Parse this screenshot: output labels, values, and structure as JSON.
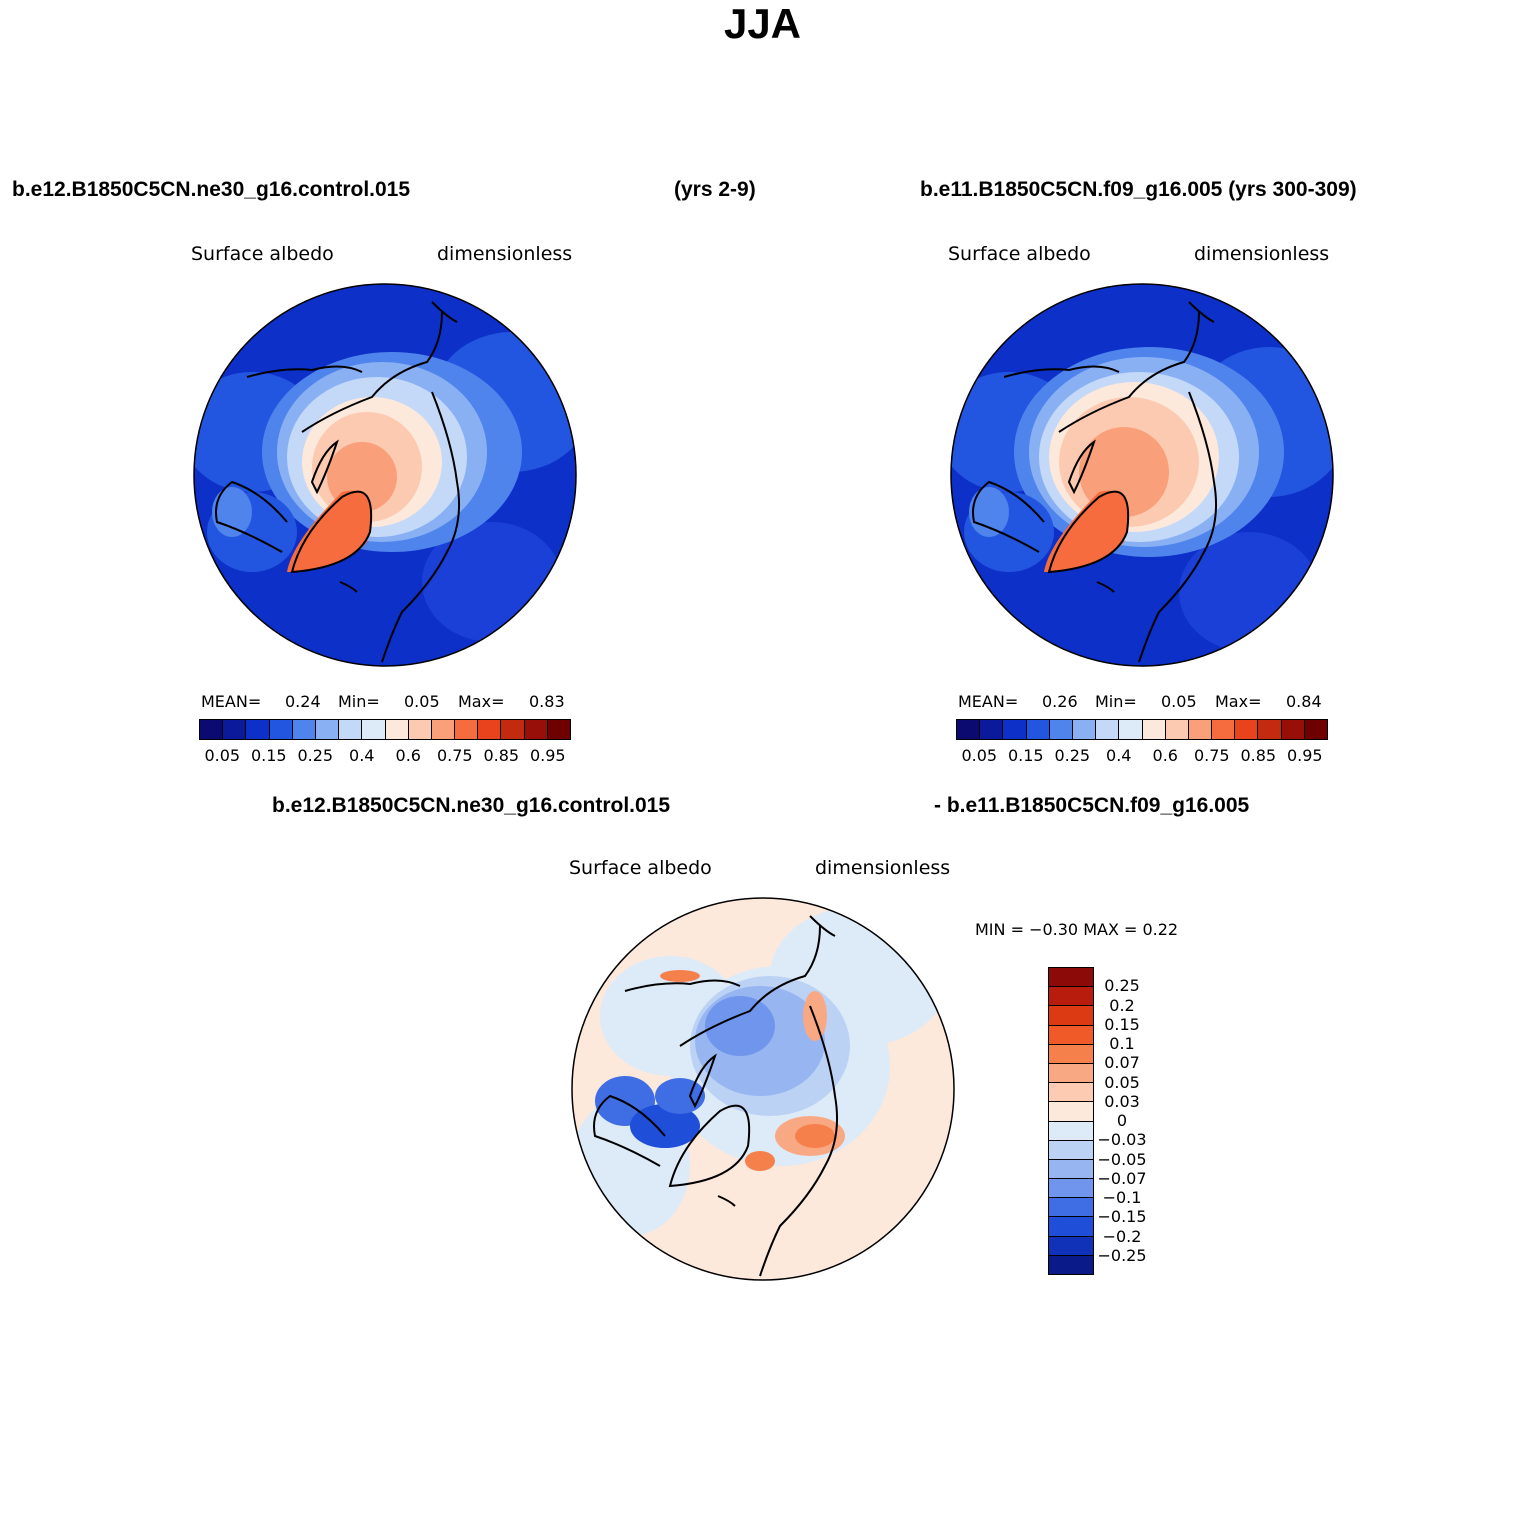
{
  "title": "JJA",
  "panel_left": {
    "case": "b.e12.B1850C5CN.ne30_g16.control.015",
    "years": "(yrs 2-9)",
    "variable": "Surface albedo",
    "units": "dimensionless",
    "mean_label": "MEAN=",
    "mean": "0.24",
    "min_label": "Min=",
    "min": "0.05",
    "max_label": "Max=",
    "max": "0.83"
  },
  "panel_right": {
    "case": "b.e11.B1850C5CN.f09_g16.005 (yrs 300-309)",
    "variable": "Surface albedo",
    "units": "dimensionless",
    "mean_label": "MEAN=",
    "mean": "0.26",
    "min_label": "Min=",
    "min": "0.05",
    "max_label": "Max=",
    "max": "0.84"
  },
  "panel_diff": {
    "case_a": "b.e12.B1850C5CN.ne30_g16.control.015",
    "case_b": "- b.e11.B1850C5CN.f09_g16.005",
    "variable": "Surface albedo",
    "units": "dimensionless",
    "minmax_label": "MIN =   −0.30 MAX =    0.22"
  },
  "colorbar_abs": {
    "colors": [
      "#0a0a70",
      "#0a1a9a",
      "#0d30c8",
      "#2356e0",
      "#4f84ec",
      "#8ab0f4",
      "#c4d8f8",
      "#ddeaf8",
      "#fde8dc",
      "#fccab0",
      "#f9a07a",
      "#f66c3e",
      "#e8431c",
      "#c42a10",
      "#980e08",
      "#6e0000"
    ],
    "ticks": [
      "0.05",
      "0.15",
      "0.25",
      "0.4",
      "0.6",
      "0.75",
      "0.85",
      "0.95"
    ]
  },
  "colorbar_diff": {
    "colors": [
      "#8c0a08",
      "#b71c0c",
      "#dc3a12",
      "#f05a28",
      "#f6804c",
      "#f9a884",
      "#fccbb2",
      "#fde8dc",
      "#ddeaf8",
      "#bcd2f5",
      "#97b6f1",
      "#6f96ec",
      "#3f6ee4",
      "#1f4ed8",
      "#0f32b8",
      "#0a1a88"
    ],
    "ticks": [
      "0.25",
      "0.2",
      "0.15",
      "0.1",
      "0.07",
      "0.05",
      "0.03",
      "0",
      "−0.03",
      "−0.05",
      "−0.07",
      "−0.1",
      "−0.15",
      "−0.2",
      "−0.25"
    ]
  }
}
